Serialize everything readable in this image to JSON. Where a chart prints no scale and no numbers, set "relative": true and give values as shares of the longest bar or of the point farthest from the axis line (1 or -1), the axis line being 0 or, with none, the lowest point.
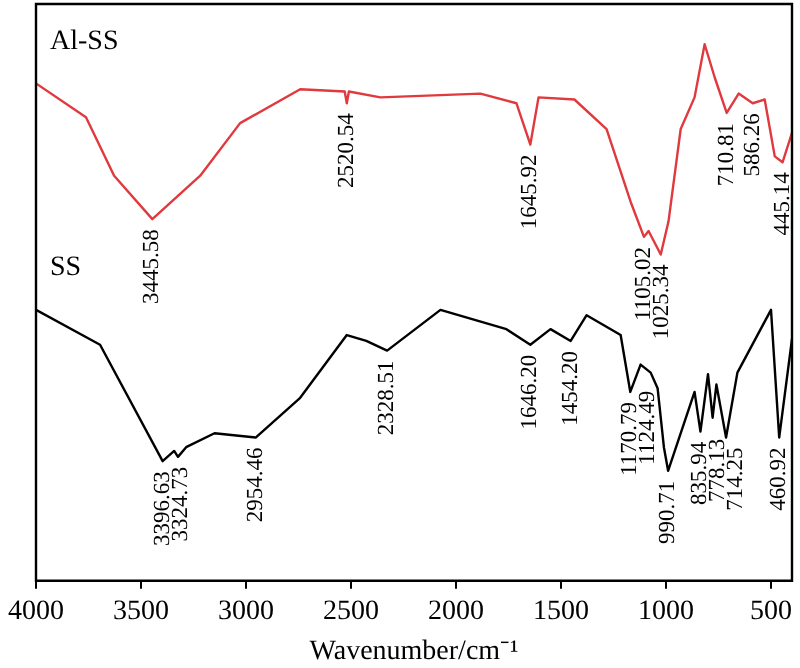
{
  "chart_data": {
    "type": "line",
    "relative": true,
    "xlabel": "Wavenumber/cm⁻¹",
    "xlim": [
      4000,
      400
    ],
    "xticks": [
      4000,
      3500,
      3000,
      2500,
      2000,
      1500,
      1000,
      500
    ],
    "grid": false,
    "legend": false,
    "marker": "none",
    "line_style": "solid",
    "series": [
      {
        "name": "Al-SS",
        "color": "#e0393e",
        "x": [
          4000,
          3762,
          3628,
          3446,
          3218,
          3028,
          2742,
          2530,
          2520,
          2510,
          2360,
          1884,
          1712,
          1646,
          1607,
          1436,
          1283,
          1169,
          1105,
          1083,
          1025,
          988,
          930,
          864,
          816,
          768,
          711,
          654,
          587,
          530,
          482,
          445,
          400
        ],
        "values": [
          0.927,
          0.864,
          0.755,
          0.674,
          0.755,
          0.853,
          0.916,
          0.912,
          0.89,
          0.912,
          0.901,
          0.908,
          0.89,
          0.813,
          0.901,
          0.897,
          0.842,
          0.707,
          0.641,
          0.652,
          0.608,
          0.67,
          0.842,
          0.901,
          1,
          0.938,
          0.872,
          0.908,
          0.89,
          0.897,
          0.791,
          0.78,
          0.835
        ]
      },
      {
        "name": "SS",
        "color": "#000000",
        "x": [
          4000,
          3695,
          3397,
          3342,
          3324,
          3285,
          3150,
          2954,
          2742,
          2520,
          2427,
          2328,
          2074,
          1760,
          1646,
          1550,
          1454,
          1378,
          1216,
          1170,
          1121,
          1073,
          1040,
          1010,
          990,
          864,
          836,
          800,
          778,
          760,
          714,
          660,
          500,
          461,
          400
        ],
        "values": [
          0.505,
          0.44,
          0.223,
          0.242,
          0.231,
          0.249,
          0.275,
          0.267,
          0.341,
          0.458,
          0.447,
          0.429,
          0.505,
          0.469,
          0.44,
          0.469,
          0.447,
          0.495,
          0.458,
          0.352,
          0.403,
          0.388,
          0.359,
          0.249,
          0.205,
          0.352,
          0.278,
          0.385,
          0.304,
          0.366,
          0.267,
          0.388,
          0.505,
          0.267,
          0.451
        ]
      }
    ],
    "annotations": [
      {
        "text": "3445.58",
        "x": 3446,
        "y": 0.674
      },
      {
        "text": "2520.54",
        "x": 2520,
        "y": 0.89
      },
      {
        "text": "1645.92",
        "x": 1646,
        "y": 0.813
      },
      {
        "text": "1105.02",
        "x": 1105,
        "y": 0.641
      },
      {
        "text": "1025.34",
        "x": 1025,
        "y": 0.608
      },
      {
        "text": "710.81",
        "x": 711,
        "y": 0.872
      },
      {
        "text": "586.26",
        "x": 587,
        "y": 0.89
      },
      {
        "text": "445.14",
        "x": 445,
        "y": 0.78
      },
      {
        "text": "3396.63",
        "x": 3397,
        "y": 0.223
      },
      {
        "text": "3324.73",
        "x": 3324,
        "y": 0.231
      },
      {
        "text": "2954.46",
        "x": 2954,
        "y": 0.267
      },
      {
        "text": "2328.51",
        "x": 2328,
        "y": 0.429
      },
      {
        "text": "1646.20",
        "x": 1646,
        "y": 0.44
      },
      {
        "text": "1454.20",
        "x": 1454,
        "y": 0.447
      },
      {
        "text": "1170.79",
        "x": 1170,
        "y": 0.352
      },
      {
        "text": "1124.49",
        "x": 1121,
        "y": 0.403
      },
      {
        "text": "990.71",
        "x": 990,
        "y": 0.205
      },
      {
        "text": "835.94",
        "x": 836,
        "y": 0.278
      },
      {
        "text": "778.13",
        "x": 778,
        "y": 0.304
      },
      {
        "text": "714.25",
        "x": 714,
        "y": 0.267
      },
      {
        "text": "460.92",
        "x": 461,
        "y": 0.267
      }
    ]
  }
}
